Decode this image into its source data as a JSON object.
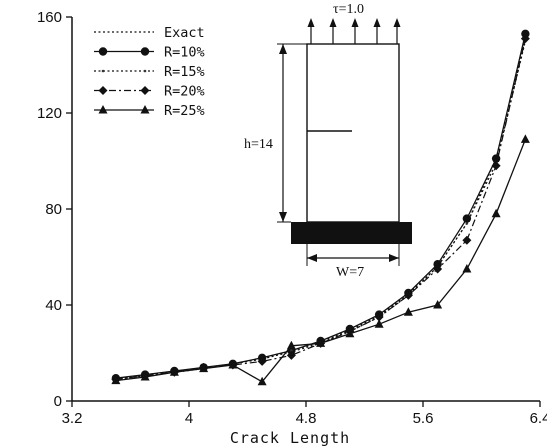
{
  "chart_data": {
    "type": "line",
    "title": "",
    "xlabel": "Crack Length",
    "ylabel": "",
    "xlim": [
      3.2,
      6.4
    ],
    "ylim": [
      0,
      160
    ],
    "xticks": [
      "3.2",
      "4",
      "4.8",
      "5.6",
      "6.4"
    ],
    "yticks": [
      "0",
      "40",
      "80",
      "120",
      "160"
    ],
    "grid": false,
    "legend_position": "top-left",
    "series": [
      {
        "name": "Exact",
        "style": "dotted",
        "marker": "none",
        "x": [
          3.5,
          3.7,
          3.9,
          4.1,
          4.3,
          4.5,
          4.7,
          4.9,
          5.1,
          5.3,
          5.5,
          5.7,
          5.9,
          6.1,
          6.3
        ],
        "y": [
          9,
          10.5,
          12,
          13.5,
          15.5,
          17.5,
          20.5,
          24,
          29,
          35,
          44,
          56,
          74,
          101,
          151
        ]
      },
      {
        "name": "R=10%",
        "style": "solid",
        "marker": "circle",
        "x": [
          3.5,
          3.7,
          3.9,
          4.1,
          4.3,
          4.5,
          4.7,
          4.9,
          5.1,
          5.3,
          5.5,
          5.7,
          5.9,
          6.1,
          6.3
        ],
        "y": [
          9.5,
          11,
          12.5,
          14,
          15.5,
          18,
          21,
          25,
          30,
          36,
          45,
          57,
          76,
          101,
          153
        ]
      },
      {
        "name": "R=15%",
        "style": "dotted",
        "marker": "small-dot",
        "x": [
          3.5,
          3.7,
          3.9,
          4.1,
          4.3,
          4.5,
          4.7,
          4.9,
          5.1,
          5.3,
          5.5,
          5.7,
          5.9,
          6.1,
          6.3
        ],
        "y": [
          9,
          10.5,
          12,
          13.5,
          15.5,
          17.5,
          21,
          24.5,
          29.5,
          35.5,
          44.5,
          56,
          74,
          99,
          150
        ]
      },
      {
        "name": "R=20%",
        "style": "dash-dot",
        "marker": "diamond",
        "x": [
          3.5,
          3.7,
          3.9,
          4.1,
          4.3,
          4.5,
          4.7,
          4.9,
          5.1,
          5.3,
          5.5,
          5.7,
          5.9,
          6.1,
          6.3
        ],
        "y": [
          9,
          10.5,
          12,
          14,
          15,
          16.5,
          19,
          24,
          29,
          35,
          44,
          55,
          67,
          98,
          151
        ]
      },
      {
        "name": "R=25%",
        "style": "solid",
        "marker": "triangle",
        "x": [
          3.5,
          3.7,
          3.9,
          4.1,
          4.3,
          4.5,
          4.7,
          4.9,
          5.1,
          5.3,
          5.5,
          5.7,
          5.9,
          6.1,
          6.3
        ],
        "y": [
          8.5,
          10,
          12,
          13.5,
          15,
          8,
          23,
          24,
          28,
          32,
          37,
          40,
          55,
          78,
          109
        ]
      }
    ]
  },
  "inset": {
    "load_label": "τ=1.0",
    "height_label": "h=14",
    "width_label": "W=7"
  }
}
